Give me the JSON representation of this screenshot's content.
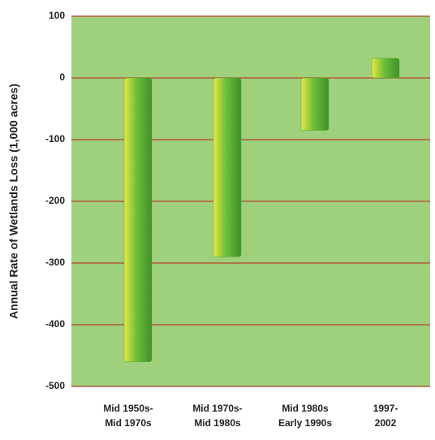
{
  "chart_data": {
    "type": "bar",
    "y_label": "Annual Rate of Wetlands Loss (1,000 acres)",
    "categories": [
      [
        "Mid 1950s-",
        "Mid 1970s"
      ],
      [
        "Mid 1970s-",
        "Mid 1980s"
      ],
      [
        "Mid 1980s",
        "Early 1990s"
      ],
      [
        "1997-",
        "2002"
      ]
    ],
    "values": [
      -460,
      -290,
      -85,
      32
    ],
    "ylim": [
      -500,
      100
    ],
    "yticks": [
      -500,
      -400,
      -300,
      -200,
      -100,
      0,
      100
    ],
    "grid": true,
    "color": "#5aa832",
    "background": "#9fd07c",
    "grid_color": "#b35a3c"
  }
}
